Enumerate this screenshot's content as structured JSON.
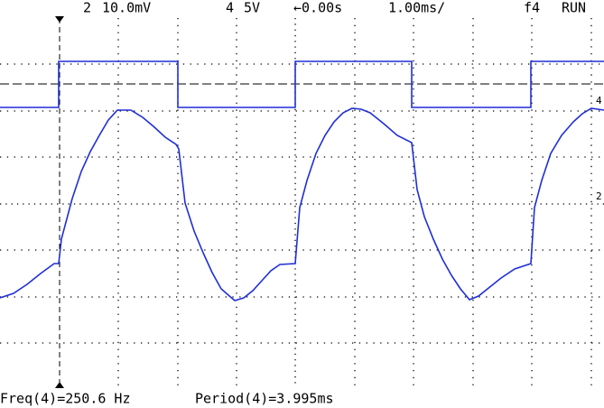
{
  "status_bar": {
    "channel": "2",
    "channel_scale": "10.0mV",
    "trigger_channel": "4",
    "trigger_scale": "5V",
    "delay": "←0.00s",
    "timebase": "1.00ms/",
    "trigger_source": "f4",
    "run_state": "RUN"
  },
  "markers": {
    "channel_4": "4",
    "channel_2": "2"
  },
  "measurements": {
    "frequency": "Freq(4)=250.6 Hz",
    "period": "Period(4)=3.995ms"
  }
}
